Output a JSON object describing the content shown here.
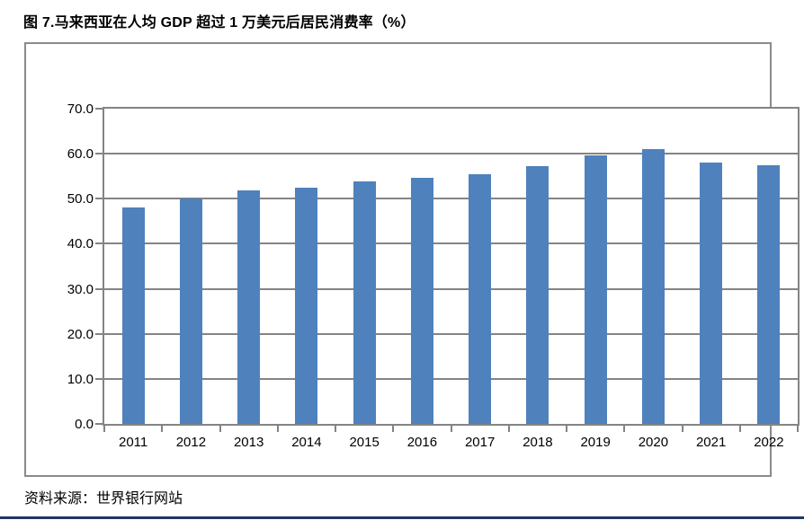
{
  "title": "图 7.马来西亚在人均 GDP 超过 1 万美元后居民消费率（%）",
  "source_note": "资料来源：世界银行网站",
  "colors": {
    "bar": "#4F81BD",
    "gridline": "#848484",
    "frame_border": "#8a8a8a",
    "bottom_rule": "#1F3864",
    "text": "#000000"
  },
  "chart_data": {
    "type": "bar",
    "title": "图 7.马来西亚在人均 GDP 超过 1 万美元后居民消费率（%）",
    "categories": [
      "2011",
      "2012",
      "2013",
      "2014",
      "2015",
      "2016",
      "2017",
      "2018",
      "2019",
      "2020",
      "2021",
      "2022"
    ],
    "values": [
      48.0,
      50.0,
      51.8,
      52.4,
      53.9,
      54.7,
      55.4,
      57.3,
      59.6,
      61.1,
      58.0,
      57.5
    ],
    "xlabel": "",
    "ylabel": "",
    "ylim": [
      0,
      70
    ],
    "ytick_step": 10,
    "ytick_labels": [
      "0.0",
      "10.0",
      "20.0",
      "30.0",
      "40.0",
      "50.0",
      "60.0",
      "70.0"
    ],
    "grid": true,
    "legend": "none",
    "source": "资料来源：世界银行网站"
  }
}
